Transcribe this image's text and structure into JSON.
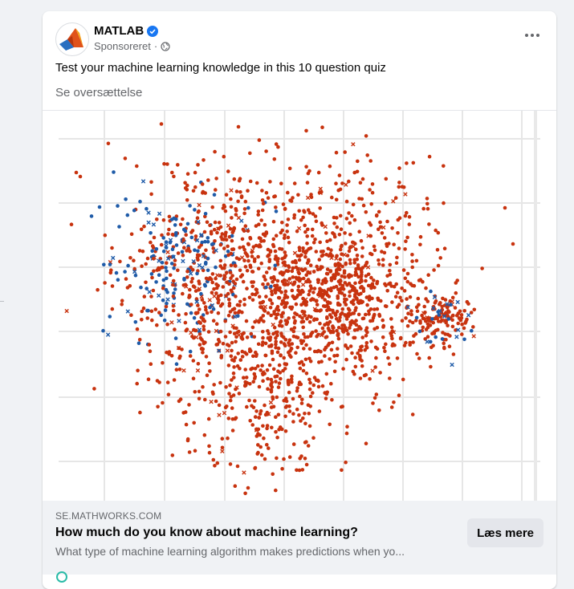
{
  "post": {
    "page_name": "MATLAB",
    "sponsored_label": "Sponsoreret",
    "separator": "·",
    "body_text": "Test your machine learning knowledge in this 10 question quiz",
    "translate_label": "Se oversættelse"
  },
  "link_preview": {
    "domain": "SE.MATHWORKS.COM",
    "title": "How much do you know about machine learning?",
    "description": "What type of machine learning algorithm makes predictions when yo...",
    "cta_label": "Læs mere"
  },
  "icons": [
    "matlab-logo-icon",
    "verified-badge-icon",
    "globe-icon",
    "more-options-icon"
  ],
  "colors": {
    "blue_points": "#1f5ba8",
    "red_points": "#c8330f",
    "verified": "#1877f2"
  },
  "chart_data": {
    "type": "scatter",
    "title": "",
    "xlabel": "",
    "ylabel": "",
    "grid": true,
    "legend": "none",
    "series": [
      {
        "color": "#c8330f",
        "marker": "dot-and-x"
      },
      {
        "color": "#1f5ba8",
        "marker": "dot-and-x"
      }
    ],
    "description_of_clusters": [
      "main dense cluster center",
      "secondary cluster right",
      "blue-rich region left"
    ]
  }
}
